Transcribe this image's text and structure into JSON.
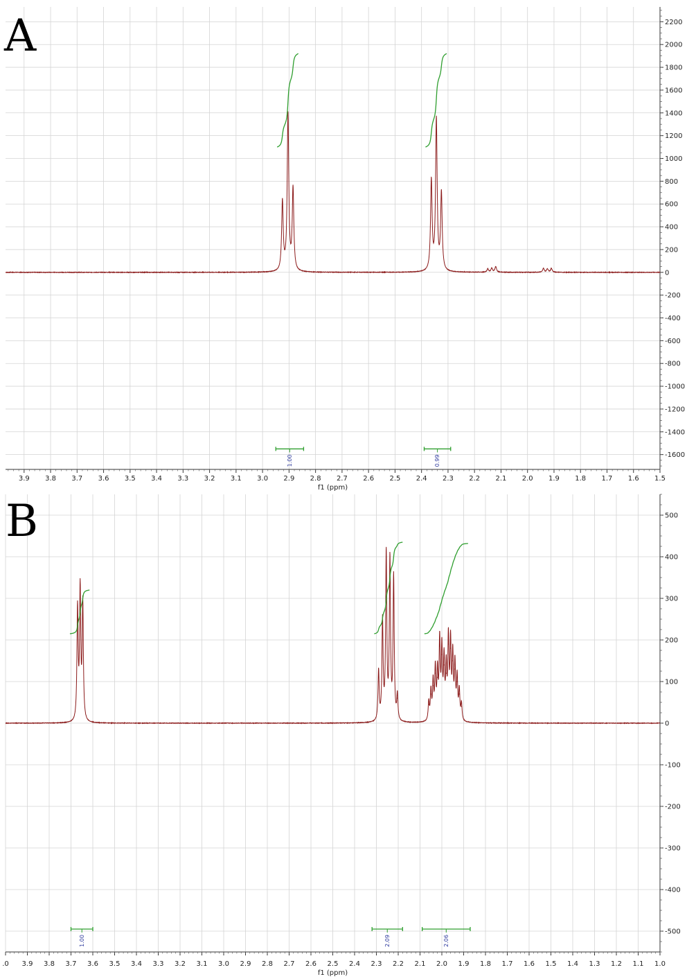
{
  "chart_data": [
    {
      "panel": "A",
      "type": "line",
      "xlabel": "f1 (ppm)",
      "x_reversed": true,
      "xlim": [
        3.97,
        1.5
      ],
      "ylim": [
        -1730,
        2330
      ],
      "x_ticks": [
        "3.9",
        "3.8",
        "3.7",
        "3.6",
        "3.5",
        "3.4",
        "3.3",
        "3.2",
        "3.1",
        "3.0",
        "2.9",
        "2.8",
        "2.7",
        "2.6",
        "2.5",
        "2.4",
        "2.3",
        "2.2",
        "2.1",
        "2.0",
        "1.9",
        "1.8",
        "1.7",
        "1.6",
        "1.5"
      ],
      "y_ticks": [
        "2200",
        "2000",
        "1800",
        "1600",
        "1400",
        "1200",
        "1000",
        "800",
        "600",
        "400",
        "200",
        "0",
        "-200",
        "-400",
        "-600",
        "-800",
        "-1000",
        "-1200",
        "-1400",
        "-1600"
      ],
      "colors": {
        "spectrum": "#8b1a1a",
        "integral": "#2e9e2e",
        "grid": "#d4d4d4",
        "label": "#2e3a9e"
      },
      "peaks": [
        {
          "x": 2.925,
          "y": 610
        },
        {
          "x": 2.904,
          "y": 1380
        },
        {
          "x": 2.885,
          "y": 720
        },
        {
          "x": 2.363,
          "y": 790
        },
        {
          "x": 2.344,
          "y": 1330
        },
        {
          "x": 2.325,
          "y": 680
        },
        {
          "x": 2.15,
          "y": 30
        },
        {
          "x": 2.135,
          "y": 35
        },
        {
          "x": 2.12,
          "y": 50
        },
        {
          "x": 1.94,
          "y": 35
        },
        {
          "x": 1.925,
          "y": 30
        },
        {
          "x": 1.91,
          "y": 35
        }
      ],
      "linewidth": 0.0035,
      "integral_curves": [
        {
          "x_start": 2.945,
          "x_end": 2.865,
          "y_start": 1100,
          "y_end": 1920
        },
        {
          "x_start": 2.385,
          "x_end": 2.305,
          "y_start": 1100,
          "y_end": 1920
        }
      ],
      "integrations": [
        {
          "value": "1.00",
          "x_start": 2.95,
          "x_end": 2.845,
          "y": -1550
        },
        {
          "value": "0.99",
          "x_start": 2.39,
          "x_end": 2.29,
          "y": -1550
        }
      ]
    },
    {
      "panel": "B",
      "type": "line",
      "xlabel": "f1 (ppm)",
      "x_reversed": true,
      "xlim": [
        4.0,
        1.0
      ],
      "ylim": [
        -550,
        550
      ],
      "x_ticks": [
        ".0",
        "3.9",
        "3.8",
        "3.7",
        "3.6",
        "3.5",
        "3.4",
        "3.3",
        "3.2",
        "3.1",
        "3.0",
        "2.9",
        "2.8",
        "2.7",
        "2.6",
        "2.5",
        "2.4",
        "2.3",
        "2.2",
        "2.1",
        "2.0",
        "1.9",
        "1.8",
        "1.7",
        "1.6",
        "1.5",
        "1.4",
        "1.3",
        "1.2",
        "1.1",
        "1.0"
      ],
      "y_ticks": [
        "500",
        "400",
        "300",
        "200",
        "100",
        "0",
        "-100",
        "-200",
        "-300",
        "-400",
        "-500"
      ],
      "colors": {
        "spectrum": "#8b1a1a",
        "integral": "#2e9e2e",
        "grid": "#d4d4d4",
        "label": "#2e3a9e"
      },
      "peaks": [
        {
          "x": 3.67,
          "y": 270
        },
        {
          "x": 3.658,
          "y": 312
        },
        {
          "x": 3.646,
          "y": 282
        },
        {
          "x": 2.29,
          "y": 120
        },
        {
          "x": 2.272,
          "y": 240
        },
        {
          "x": 2.255,
          "y": 400
        },
        {
          "x": 2.238,
          "y": 385
        },
        {
          "x": 2.221,
          "y": 345
        },
        {
          "x": 2.204,
          "y": 60
        },
        {
          "x": 2.06,
          "y": 45
        },
        {
          "x": 2.05,
          "y": 70
        },
        {
          "x": 2.04,
          "y": 90
        },
        {
          "x": 2.03,
          "y": 120
        },
        {
          "x": 2.02,
          "y": 110
        },
        {
          "x": 2.01,
          "y": 185
        },
        {
          "x": 2.0,
          "y": 165
        },
        {
          "x": 1.99,
          "y": 140
        },
        {
          "x": 1.98,
          "y": 120
        },
        {
          "x": 1.97,
          "y": 190
        },
        {
          "x": 1.96,
          "y": 180
        },
        {
          "x": 1.95,
          "y": 150
        },
        {
          "x": 1.94,
          "y": 130
        },
        {
          "x": 1.93,
          "y": 100
        },
        {
          "x": 1.92,
          "y": 70
        },
        {
          "x": 1.91,
          "y": 40
        }
      ],
      "linewidth": 0.0032,
      "integral_curves": [
        {
          "x_start": 2.31,
          "x_end": 2.18,
          "y_start": 215,
          "y_end": 435
        },
        {
          "x_start": 2.08,
          "x_end": 1.88,
          "y_start": 215,
          "y_end": 432
        },
        {
          "x_start": 3.705,
          "x_end": 3.615,
          "y_start": 215,
          "y_end": 320
        }
      ],
      "integrations": [
        {
          "value": "1.00",
          "x_start": 3.7,
          "x_end": 3.6,
          "y": -495
        },
        {
          "value": "2.09",
          "x_start": 2.32,
          "x_end": 2.18,
          "y": -495
        },
        {
          "value": "2.06",
          "x_start": 2.09,
          "x_end": 1.87,
          "y": -495
        }
      ]
    }
  ],
  "panel_labels": {
    "a": "A",
    "b": "B"
  }
}
